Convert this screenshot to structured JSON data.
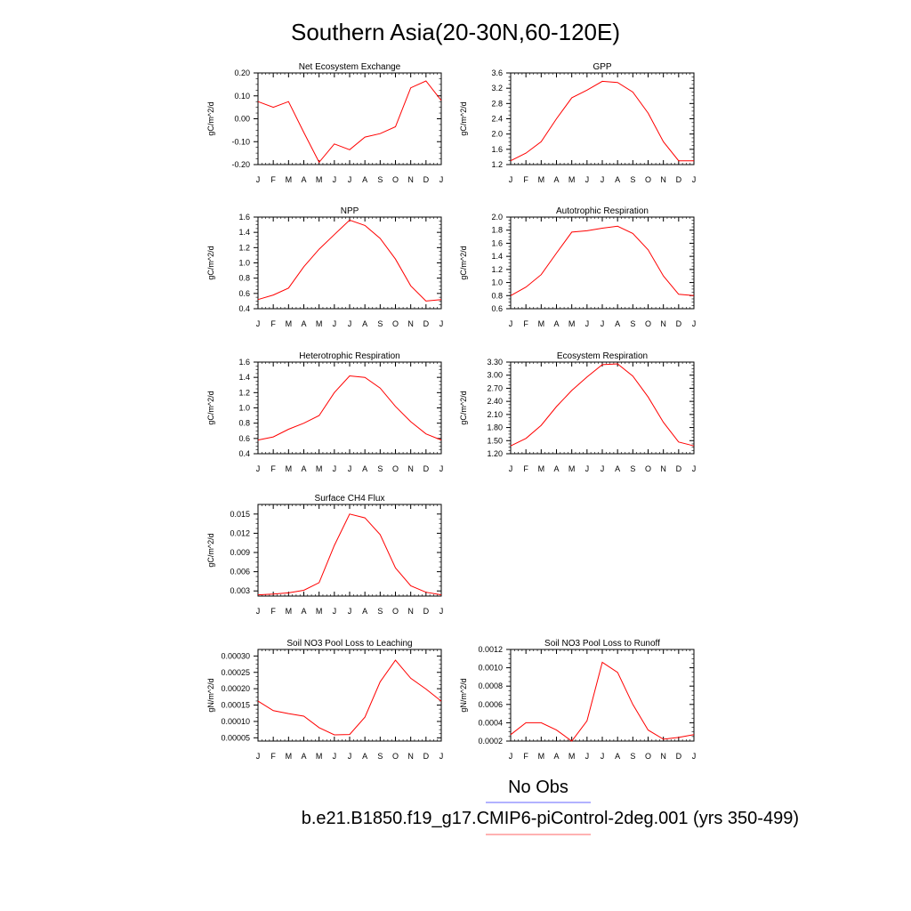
{
  "figure": {
    "title": "Southern Asia(20-30N,60-120E)",
    "legend": [
      {
        "label": "No Obs",
        "color": "#6666ff"
      },
      {
        "label": "b.e21.B1850.f19_g17.CMIP6-piControl-2deg.001 (yrs 350-499)",
        "color": "#ff6666"
      }
    ],
    "line_color": "#ff0000"
  },
  "chart_data": [
    {
      "type": "line",
      "title": "Net Ecosystem Exchange",
      "ylabel": "gC/m^2/d",
      "categories": [
        "J",
        "F",
        "M",
        "A",
        "M",
        "J",
        "J",
        "A",
        "S",
        "O",
        "N",
        "D",
        "J"
      ],
      "values": [
        0.075,
        0.05,
        0.075,
        -0.06,
        -0.19,
        -0.11,
        -0.135,
        -0.08,
        -0.065,
        -0.035,
        0.135,
        0.165,
        0.08
      ],
      "ylim": [
        -0.2,
        0.2
      ],
      "yticks": [
        -0.2,
        -0.1,
        0.0,
        0.1,
        0.2
      ],
      "yticklabels": [
        "-0.20",
        "-0.10",
        "0.00",
        "0.10",
        "0.20"
      ]
    },
    {
      "type": "line",
      "title": "GPP",
      "ylabel": "gC/m^2/d",
      "categories": [
        "J",
        "F",
        "M",
        "A",
        "M",
        "J",
        "J",
        "A",
        "S",
        "O",
        "N",
        "D",
        "J"
      ],
      "values": [
        1.3,
        1.5,
        1.8,
        2.4,
        2.95,
        3.15,
        3.38,
        3.35,
        3.1,
        2.55,
        1.8,
        1.3,
        1.3
      ],
      "ylim": [
        1.2,
        3.6
      ],
      "yticks": [
        1.2,
        1.6,
        2.0,
        2.4,
        2.8,
        3.2,
        3.6
      ],
      "yticklabels": [
        "1.2",
        "1.6",
        "2.0",
        "2.4",
        "2.8",
        "3.2",
        "3.6"
      ]
    },
    {
      "type": "line",
      "title": "NPP",
      "ylabel": "gC/m^2/d",
      "categories": [
        "J",
        "F",
        "M",
        "A",
        "M",
        "J",
        "J",
        "A",
        "S",
        "O",
        "N",
        "D",
        "J"
      ],
      "values": [
        0.52,
        0.58,
        0.67,
        0.95,
        1.18,
        1.37,
        1.56,
        1.49,
        1.32,
        1.05,
        0.7,
        0.5,
        0.52
      ],
      "ylim": [
        0.4,
        1.6
      ],
      "yticks": [
        0.4,
        0.6,
        0.8,
        1.0,
        1.2,
        1.4,
        1.6
      ],
      "yticklabels": [
        "0.4",
        "0.6",
        "0.8",
        "1.0",
        "1.2",
        "1.4",
        "1.6"
      ]
    },
    {
      "type": "line",
      "title": "Autotrophic Respiration",
      "ylabel": "gC/m^2/d",
      "categories": [
        "J",
        "F",
        "M",
        "A",
        "M",
        "J",
        "J",
        "A",
        "S",
        "O",
        "N",
        "D",
        "J"
      ],
      "values": [
        0.8,
        0.93,
        1.12,
        1.45,
        1.77,
        1.79,
        1.83,
        1.86,
        1.75,
        1.5,
        1.1,
        0.82,
        0.8
      ],
      "ylim": [
        0.6,
        2.0
      ],
      "yticks": [
        0.6,
        0.8,
        1.0,
        1.2,
        1.4,
        1.6,
        1.8,
        2.0
      ],
      "yticklabels": [
        "0.6",
        "0.8",
        "1.0",
        "1.2",
        "1.4",
        "1.6",
        "1.8",
        "2.0"
      ]
    },
    {
      "type": "line",
      "title": "Heterotrophic Respiration",
      "ylabel": "gC/m^2/d",
      "categories": [
        "J",
        "F",
        "M",
        "A",
        "M",
        "J",
        "J",
        "A",
        "S",
        "O",
        "N",
        "D",
        "J"
      ],
      "values": [
        0.58,
        0.62,
        0.72,
        0.8,
        0.9,
        1.2,
        1.42,
        1.4,
        1.26,
        1.02,
        0.82,
        0.66,
        0.58
      ],
      "ylim": [
        0.4,
        1.6
      ],
      "yticks": [
        0.4,
        0.6,
        0.8,
        1.0,
        1.2,
        1.4,
        1.6
      ],
      "yticklabels": [
        "0.4",
        "0.6",
        "0.8",
        "1.0",
        "1.2",
        "1.4",
        "1.6"
      ]
    },
    {
      "type": "line",
      "title": "Ecosystem Respiration",
      "ylabel": "gC/m^2/d",
      "categories": [
        "J",
        "F",
        "M",
        "A",
        "M",
        "J",
        "J",
        "A",
        "S",
        "O",
        "N",
        "D",
        "J"
      ],
      "values": [
        1.38,
        1.55,
        1.85,
        2.28,
        2.65,
        2.96,
        3.24,
        3.26,
        2.98,
        2.5,
        1.92,
        1.47,
        1.38
      ],
      "ylim": [
        1.2,
        3.3
      ],
      "yticks": [
        1.2,
        1.5,
        1.8,
        2.1,
        2.4,
        2.7,
        3.0,
        3.3
      ],
      "yticklabels": [
        "1.20",
        "1.50",
        "1.80",
        "2.10",
        "2.40",
        "2.70",
        "3.00",
        "3.30"
      ]
    },
    {
      "type": "line",
      "title": "Surface CH4 Flux",
      "ylabel": "gC/m^2/d",
      "categories": [
        "J",
        "F",
        "M",
        "A",
        "M",
        "J",
        "J",
        "A",
        "S",
        "O",
        "N",
        "D",
        "J"
      ],
      "values": [
        0.0024,
        0.0025,
        0.0027,
        0.0031,
        0.0043,
        0.0101,
        0.015,
        0.0144,
        0.0118,
        0.0066,
        0.0038,
        0.0028,
        0.0024
      ],
      "ylim": [
        0.0022,
        0.0165
      ],
      "yticks": [
        0.003,
        0.006,
        0.009,
        0.012,
        0.015
      ],
      "yticklabels": [
        "0.003",
        "0.006",
        "0.009",
        "0.012",
        "0.015"
      ]
    },
    {
      "type": "line",
      "title": "Soil NO3 Pool Loss to Leaching",
      "ylabel": "gN/m^2/d",
      "categories": [
        "J",
        "F",
        "M",
        "A",
        "M",
        "J",
        "J",
        "A",
        "S",
        "O",
        "N",
        "D",
        "J"
      ],
      "values": [
        0.000162,
        0.000133,
        0.000124,
        0.000116,
        8.1e-05,
        5.9e-05,
        6e-05,
        0.000113,
        0.000221,
        0.000287,
        0.000232,
        0.000199,
        0.000162
      ],
      "ylim": [
        4e-05,
        0.00032
      ],
      "yticks": [
        5e-05,
        0.0001,
        0.00015,
        0.0002,
        0.00025,
        0.0003
      ],
      "yticklabels": [
        "0.00005",
        "0.00010",
        "0.00015",
        "0.00020",
        "0.00025",
        "0.00030"
      ]
    },
    {
      "type": "line",
      "title": "Soil NO3 Pool Loss to Runoff",
      "ylabel": "gN/m^2/d",
      "categories": [
        "J",
        "F",
        "M",
        "A",
        "M",
        "J",
        "J",
        "A",
        "S",
        "O",
        "N",
        "D",
        "J"
      ],
      "values": [
        0.00027,
        0.0004,
        0.0004,
        0.00032,
        0.0002,
        0.00042,
        0.00106,
        0.00095,
        0.0006,
        0.00032,
        0.00022,
        0.00024,
        0.00027
      ],
      "ylim": [
        0.0002,
        0.0012
      ],
      "yticks": [
        0.0002,
        0.0004,
        0.0006,
        0.0008,
        0.001,
        0.0012
      ],
      "yticklabels": [
        "0.0002",
        "0.0004",
        "0.0006",
        "0.0008",
        "0.0010",
        "0.0012"
      ]
    }
  ]
}
